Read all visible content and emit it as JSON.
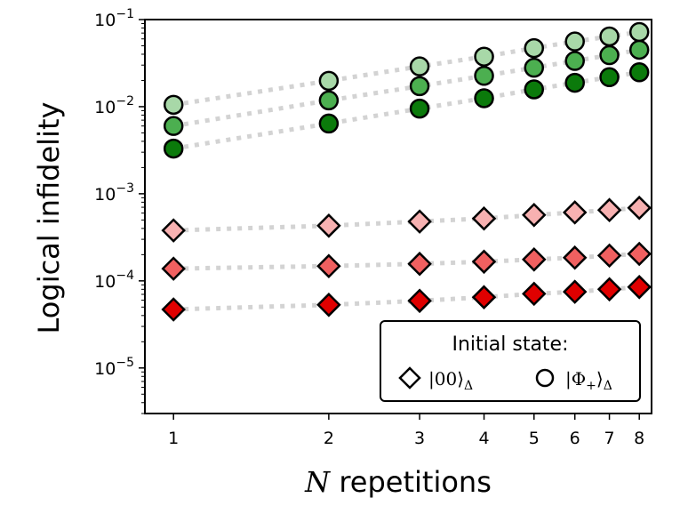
{
  "chart_data": {
    "type": "scatter",
    "title": "",
    "xlabel": "N repetitions",
    "xlabel_var": "N",
    "xlabel_rest": " repetitions",
    "ylabel": "Logical infidelity",
    "xscale": "log",
    "yscale": "log",
    "xlim": [
      0.88,
      8.45
    ],
    "ylim": [
      3e-06,
      0.1
    ],
    "x": [
      1,
      2,
      3,
      4,
      5,
      6,
      7,
      8
    ],
    "x_tick_labels": [
      "1",
      "2",
      "3",
      "4",
      "5",
      "6",
      "7",
      "8"
    ],
    "y_ticks": [
      {
        "value": 1e-05,
        "base": "10",
        "exp": "−5"
      },
      {
        "value": 0.0001,
        "base": "10",
        "exp": "−4"
      },
      {
        "value": 0.001,
        "base": "10",
        "exp": "−3"
      },
      {
        "value": 0.01,
        "base": "10",
        "exp": "−2"
      },
      {
        "value": 0.1,
        "base": "10",
        "exp": "−1"
      }
    ],
    "series": [
      {
        "name": "|Φ+⟩Δ (light)",
        "marker": "circle",
        "color": "#a8d8a8",
        "values": [
          0.0105,
          0.0198,
          0.029,
          0.0375,
          0.047,
          0.056,
          0.064,
          0.072
        ]
      },
      {
        "name": "|Φ+⟩Δ (medium)",
        "marker": "circle",
        "color": "#4caf50",
        "values": [
          0.006,
          0.0118,
          0.0172,
          0.0226,
          0.028,
          0.0335,
          0.039,
          0.045
        ]
      },
      {
        "name": "|Φ+⟩Δ (dark)",
        "marker": "circle",
        "color": "#0b7a0b",
        "values": [
          0.0033,
          0.0064,
          0.0095,
          0.0125,
          0.0158,
          0.0188,
          0.0218,
          0.0248
        ]
      },
      {
        "name": "|00⟩Δ (light)",
        "marker": "diamond",
        "color": "#f7b1b1",
        "values": [
          0.00038,
          0.00043,
          0.00048,
          0.00052,
          0.00057,
          0.00061,
          0.00065,
          0.00069
        ]
      },
      {
        "name": "|00⟩Δ (medium)",
        "marker": "diamond",
        "color": "#f06060",
        "values": [
          0.000138,
          0.000148,
          0.000157,
          0.000166,
          0.000176,
          0.000185,
          0.000195,
          0.000204
        ]
      },
      {
        "name": "|00⟩Δ (dark)",
        "marker": "diamond",
        "color": "#e00000",
        "values": [
          4.7e-05,
          5.3e-05,
          5.9e-05,
          6.5e-05,
          7.1e-05,
          7.5e-05,
          8e-05,
          8.5e-05
        ]
      }
    ],
    "connector_style": "dotted",
    "connector_color": "#d3d3d3",
    "legend": {
      "position": "lower-right",
      "title": "Initial state:",
      "entries": [
        {
          "marker": "diamond",
          "label": "|00⟩",
          "subscript": "Δ"
        },
        {
          "marker": "circle",
          "label": "|Φ",
          "label_sub": "+",
          "label_close": "⟩",
          "subscript": "Δ"
        }
      ]
    }
  }
}
